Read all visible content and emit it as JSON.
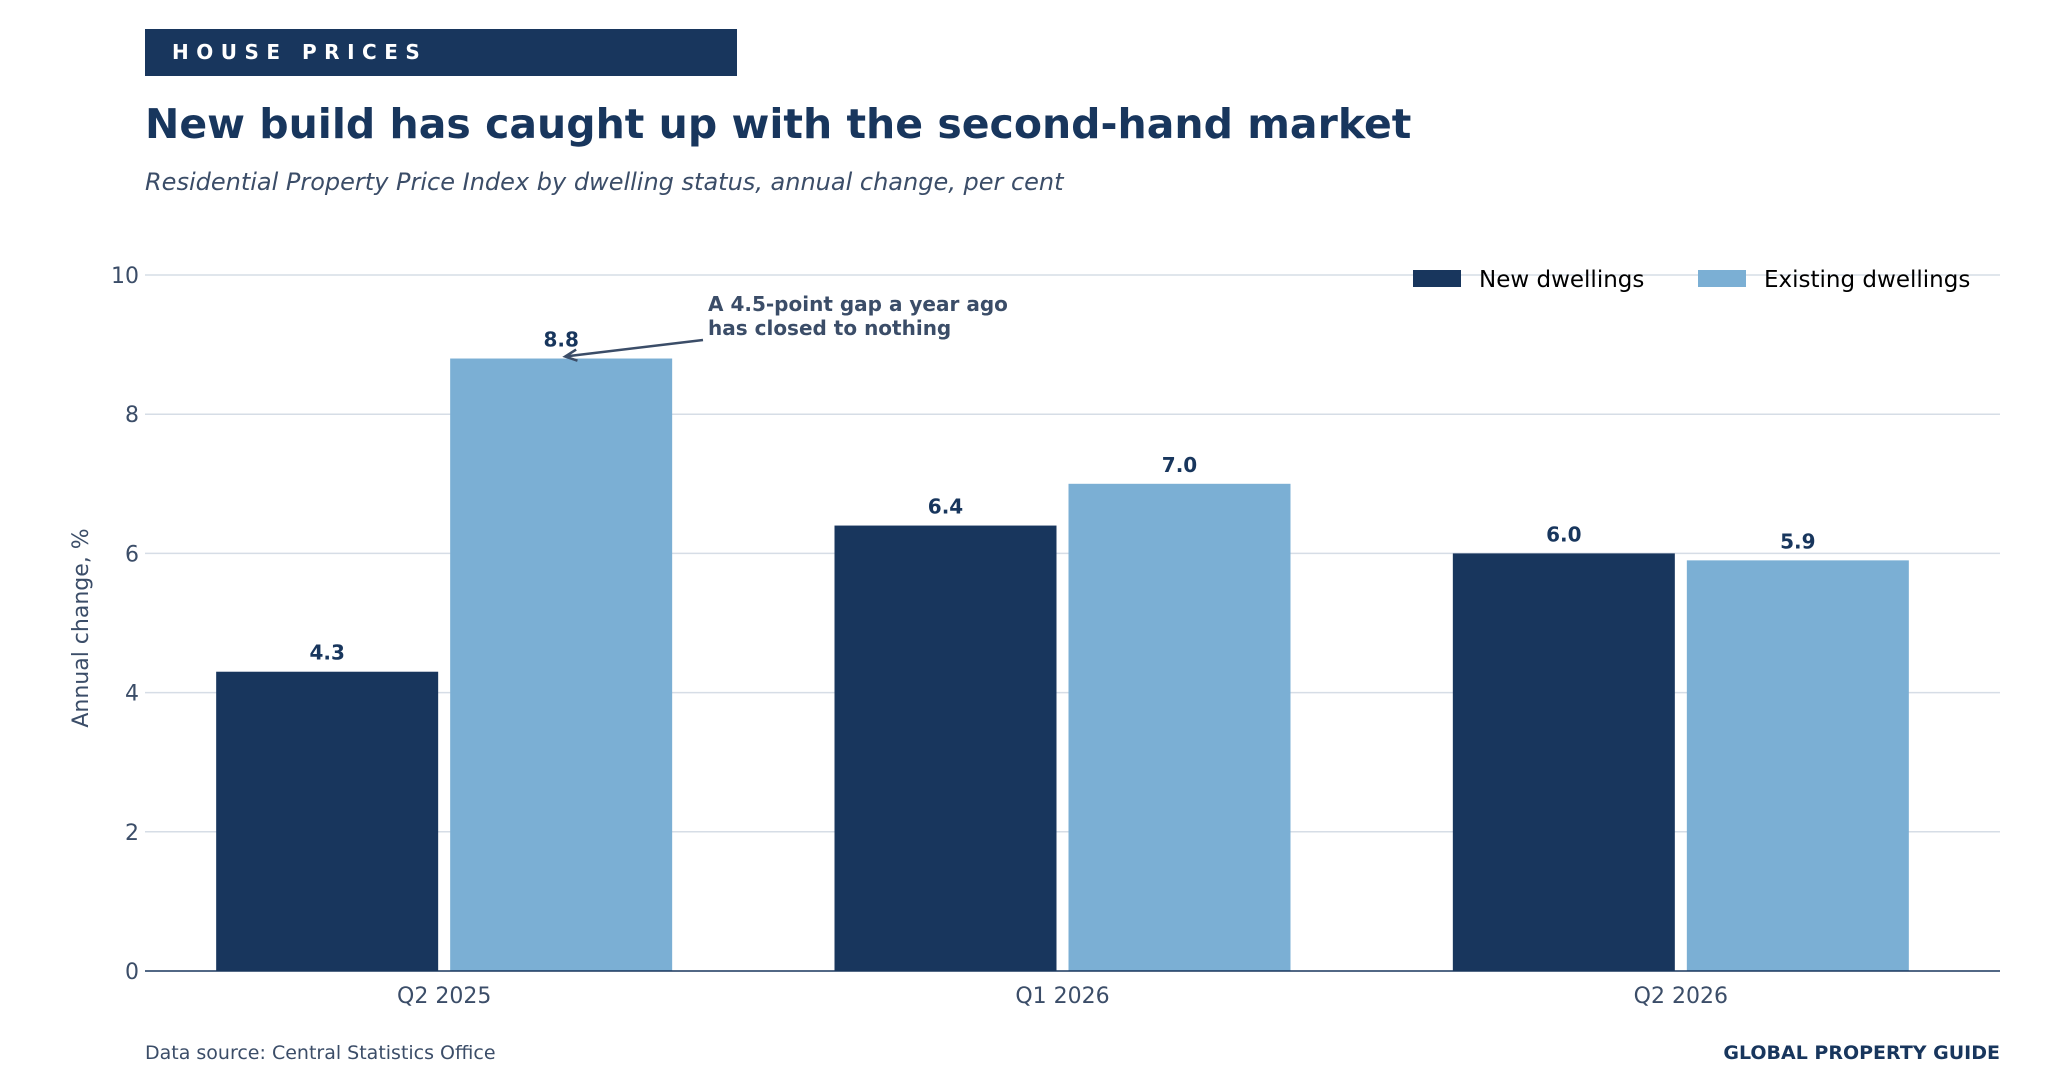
{
  "kicker": "HOUSE PRICES",
  "title": "New build has caught up with the second-hand market",
  "subtitle": "Residential Property Price Index by dwelling status, annual change, per cent",
  "footer": {
    "source": "Data source: Central Statistics Office",
    "brand": "GLOBAL PROPERTY GUIDE"
  },
  "colors": {
    "new_dwellings": "#18365d",
    "existing_dwellings": "#7bafd4",
    "text_dark": "#18365d",
    "text_muted": "#3b4d68",
    "grid": "#d6dde6"
  },
  "chart_data": {
    "type": "bar",
    "categories": [
      "Q2 2025",
      "Q1 2026",
      "Q2 2026"
    ],
    "series": [
      {
        "name": "New dwellings",
        "values": [
          4.3,
          6.4,
          6.0
        ],
        "labels": [
          "4.3",
          "6.4",
          "6.0"
        ]
      },
      {
        "name": "Existing dwellings",
        "values": [
          8.8,
          7.0,
          5.9
        ],
        "labels": [
          "8.8",
          "7.0",
          "5.9"
        ]
      }
    ],
    "ylabel": "Annual change, %",
    "xlabel": "",
    "ylim": [
      0,
      10
    ],
    "yticks": [
      0,
      2,
      4,
      6,
      8,
      10
    ],
    "grid": true,
    "legend_position": "top-right",
    "annotation": {
      "lines": [
        "A 4.5-point gap a year ago",
        "has closed to nothing"
      ],
      "points_to": {
        "category": "Q2 2025",
        "series": "Existing dwellings",
        "value": 8.8
      }
    }
  }
}
